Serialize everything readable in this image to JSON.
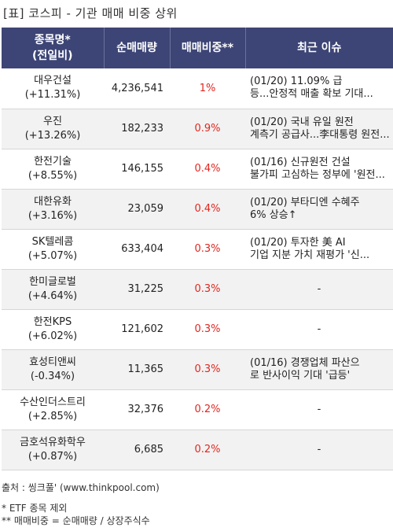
{
  "title": "[표] 코스피 - 기관 매매 비중 상위",
  "headers": {
    "name_line1": "종목명*",
    "name_line2": "(전일비)",
    "volume": "순매매량",
    "ratio": "매매비중**",
    "issue": "최근 이슈"
  },
  "rows": [
    {
      "name": "대우건설",
      "change": "(+11.31%)",
      "volume": "4,236,541",
      "ratio": "1%",
      "issue1": "(01/20) 11.09% 급",
      "issue2": "등...안정적 매출 확보 기대..."
    },
    {
      "name": "우진",
      "change": "(+13.26%)",
      "volume": "182,233",
      "ratio": "0.9%",
      "issue1": "(01/20) 국내 유일 원전",
      "issue2": "계측기 공급사...李대통령 원전..."
    },
    {
      "name": "한전기술",
      "change": "(+8.55%)",
      "volume": "146,155",
      "ratio": "0.4%",
      "issue1": "(01/16) 신규원전 건설",
      "issue2": "불가피 고심하는 정부에 '원전..."
    },
    {
      "name": "대한유화",
      "change": "(+3.16%)",
      "volume": "23,059",
      "ratio": "0.4%",
      "issue1": "(01/20) 부타디엔 수혜주",
      "issue2": "6% 상승↑"
    },
    {
      "name": "SK텔레콤",
      "change": "(+5.07%)",
      "volume": "633,404",
      "ratio": "0.3%",
      "issue1": "(01/20) 투자한 美 AI",
      "issue2": "기업 지분 가치 재평가 '신..."
    },
    {
      "name": "한미글로벌",
      "change": "(+4.64%)",
      "volume": "31,225",
      "ratio": "0.3%",
      "issue1": "-",
      "issue2": ""
    },
    {
      "name": "한전KPS",
      "change": "(+6.02%)",
      "volume": "121,602",
      "ratio": "0.3%",
      "issue1": "-",
      "issue2": ""
    },
    {
      "name": "효성티앤씨",
      "change": "(-0.34%)",
      "volume": "11,365",
      "ratio": "0.3%",
      "issue1": "(01/16) 경쟁업체 파산으",
      "issue2": "로 반사이익 기대 '급등'"
    },
    {
      "name": "수산인더스트리",
      "change": "(+2.85%)",
      "volume": "32,376",
      "ratio": "0.2%",
      "issue1": "-",
      "issue2": ""
    },
    {
      "name": "금호석유화학우",
      "change": "(+0.87%)",
      "volume": "6,685",
      "ratio": "0.2%",
      "issue1": "-",
      "issue2": ""
    }
  ],
  "footer": {
    "source": "출처 : 씽크풀' (www.thinkpool.com)",
    "note1": "* ETF 종목 제외",
    "note2": "** 매매비중 = 순매매량 / 상장주식수"
  },
  "colors": {
    "header_bg": "#3d4576",
    "ratio_text": "#e0261f",
    "row_alt": "#f2f2f2"
  }
}
